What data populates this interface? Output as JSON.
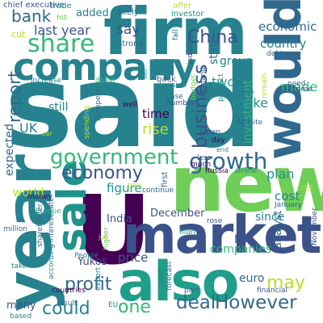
{
  "palette": {
    "dark_purple": "#440154",
    "indigo": "#3b528b",
    "steel_blue": "#31688e",
    "teal": "#26828e",
    "dark_teal": "#21918c",
    "green_teal": "#1f9e89",
    "green": "#35b779",
    "light_green": "#6ece58",
    "lime": "#b5de2b",
    "yellow": "#fde725"
  },
  "words": [
    {
      "text": "said",
      "color": "#26828e"
    },
    {
      "text": "year",
      "color": "#26828e"
    },
    {
      "text": "new",
      "color": "#6ece58"
    },
    {
      "text": "U",
      "color": "#440154"
    },
    {
      "text": "market",
      "color": "#3b528b"
    },
    {
      "text": "also",
      "color": "#1f9e89"
    },
    {
      "text": "firm",
      "color": "#26828e"
    },
    {
      "text": "company",
      "color": "#26828e"
    },
    {
      "text": "would",
      "color": "#31688e"
    },
    {
      "text": "sale",
      "color": "#21918c"
    },
    {
      "text": "government",
      "color": "#35b779"
    },
    {
      "text": "share",
      "color": "#35b779"
    },
    {
      "text": "growth",
      "color": "#31688e"
    },
    {
      "text": "business",
      "color": "#3b528b"
    },
    {
      "text": "economy",
      "color": "#3b528b"
    },
    {
      "text": "profit",
      "color": "#31688e"
    },
    {
      "text": "deal",
      "color": "#31688e"
    },
    {
      "text": "However",
      "color": "#31688e"
    },
    {
      "text": "could",
      "color": "#26828e"
    },
    {
      "text": "one",
      "color": "#35b779"
    },
    {
      "text": "may",
      "color": "#b5de2b"
    },
    {
      "text": "report",
      "color": "#31688e"
    },
    {
      "text": "bank",
      "color": "#31688e"
    },
    {
      "text": "China",
      "color": "#3b528b"
    },
    {
      "text": "last year",
      "color": "#3b528b"
    },
    {
      "text": "say",
      "color": "#3b528b"
    },
    {
      "text": "state",
      "color": "#31688e"
    },
    {
      "text": "economic",
      "color": "#31688e"
    },
    {
      "text": "country",
      "color": "#26828e"
    },
    {
      "text": "two",
      "color": "#1f9e89"
    },
    {
      "text": "group",
      "color": "#26828e"
    },
    {
      "text": "made",
      "color": "#35b779"
    },
    {
      "text": "make",
      "color": "#21918c"
    },
    {
      "text": "expected",
      "color": "#31688e"
    },
    {
      "text": "UK",
      "color": "#26828e"
    },
    {
      "text": "still",
      "color": "#26828e"
    },
    {
      "text": "rise",
      "color": "#b5de2b"
    },
    {
      "text": "time",
      "color": "#440154"
    },
    {
      "text": "investment",
      "color": "#35b779"
    },
    {
      "text": "world",
      "color": "#b5de2b"
    },
    {
      "text": "figure",
      "color": "#21918c"
    },
    {
      "text": "plan",
      "color": "#21918c"
    },
    {
      "text": "cost",
      "color": "#26828e"
    },
    {
      "text": "December",
      "color": "#3b528b"
    },
    {
      "text": "India",
      "color": "#3b528b"
    },
    {
      "text": "Mr",
      "color": "#3b528b"
    },
    {
      "text": "since",
      "color": "#26828e"
    },
    {
      "text": "price",
      "color": "#3b528b"
    },
    {
      "text": "companies",
      "color": "#35b779"
    },
    {
      "text": "Yukos",
      "color": "#3b528b"
    },
    {
      "text": "analyst",
      "color": "#31688e"
    },
    {
      "text": "euro",
      "color": "#31688e"
    },
    {
      "text": "many",
      "color": "#3b528b"
    },
    {
      "text": "cut",
      "color": "#b5de2b"
    },
    {
      "text": "chief executive",
      "color": "#3b528b"
    },
    {
      "text": "added",
      "color": "#26828e"
    },
    {
      "text": "likely",
      "color": "#31688e"
    },
    {
      "text": "offer",
      "color": "#b5de2b"
    },
    {
      "text": "investor",
      "color": "#21918c"
    },
    {
      "text": "trade",
      "color": "#26828e"
    },
    {
      "text": "hit",
      "color": "#6ece58"
    },
    {
      "text": "strong",
      "color": "#31688e"
    },
    {
      "text": "debt",
      "color": "#31688e"
    },
    {
      "text": "industry",
      "color": "#3b528b"
    },
    {
      "text": "fall",
      "color": "#31688e"
    },
    {
      "text": "increase",
      "color": "#26828e"
    },
    {
      "text": "dollar",
      "color": "#35b779"
    },
    {
      "text": "set",
      "color": "#21918c"
    },
    {
      "text": "back",
      "color": "#3b528b"
    },
    {
      "text": "decision",
      "color": "#26828e"
    },
    {
      "text": "move",
      "color": "#26828e"
    },
    {
      "text": "product",
      "color": "#26828e"
    },
    {
      "text": "demand",
      "color": "#31688e"
    },
    {
      "text": "remain",
      "color": "#b5de2b"
    },
    {
      "text": "need",
      "color": "#31688e"
    },
    {
      "text": "come",
      "color": "#3b528b"
    },
    {
      "text": "well",
      "color": "#440154"
    },
    {
      "text": "case",
      "color": "#31688e"
    },
    {
      "text": "number",
      "color": "#3b528b"
    },
    {
      "text": "budget",
      "color": "#6ece58"
    },
    {
      "text": "despite",
      "color": "#31688e"
    },
    {
      "text": "car",
      "color": "#b5de2b"
    },
    {
      "text": "spending",
      "color": "#b5de2b"
    },
    {
      "text": "European",
      "color": "#31688e"
    },
    {
      "text": "Japan",
      "color": "#3b528b"
    },
    {
      "text": "day",
      "color": "#440154"
    },
    {
      "text": "end",
      "color": "#26828e"
    },
    {
      "text": "less",
      "color": "#3b528b"
    },
    {
      "text": "much",
      "color": "#440154"
    },
    {
      "text": "airline",
      "color": "#26828e"
    },
    {
      "text": "Russia",
      "color": "#440154"
    },
    {
      "text": "first",
      "color": "#31688e"
    },
    {
      "text": "pay",
      "color": "#b5de2b"
    },
    {
      "text": "continue",
      "color": "#31688e"
    },
    {
      "text": "January",
      "color": "#31688e"
    },
    {
      "text": "bid",
      "color": "#b5de2b"
    },
    {
      "text": "money",
      "color": "#440154"
    },
    {
      "text": "interest rate",
      "color": "#31688e"
    },
    {
      "text": "Europe",
      "color": "#35b779"
    },
    {
      "text": "job",
      "color": "#b5de2b"
    },
    {
      "text": "high",
      "color": "#1f9e89"
    },
    {
      "text": "rose",
      "color": "#3b528b"
    },
    {
      "text": "million",
      "color": "#31688e"
    },
    {
      "text": "shareholder",
      "color": "#31688e"
    },
    {
      "text": "November",
      "color": "#3b528b"
    },
    {
      "text": "take",
      "color": "#26828e"
    },
    {
      "text": "People",
      "color": "#26828e"
    },
    {
      "text": "higher",
      "color": "#6ece58"
    },
    {
      "text": "forecast",
      "color": "#31688e"
    },
    {
      "text": "according",
      "color": "#26828e"
    },
    {
      "text": "countries",
      "color": "#440154"
    },
    {
      "text": "good",
      "color": "#26828e"
    },
    {
      "text": "part",
      "color": "#31688e"
    },
    {
      "text": "financial",
      "color": "#3b528b"
    },
    {
      "text": "result",
      "color": "#31688e"
    },
    {
      "text": "EU",
      "color": "#26828e"
    },
    {
      "text": "export",
      "color": "#26828e"
    },
    {
      "text": "based",
      "color": "#26828e"
    }
  ]
}
